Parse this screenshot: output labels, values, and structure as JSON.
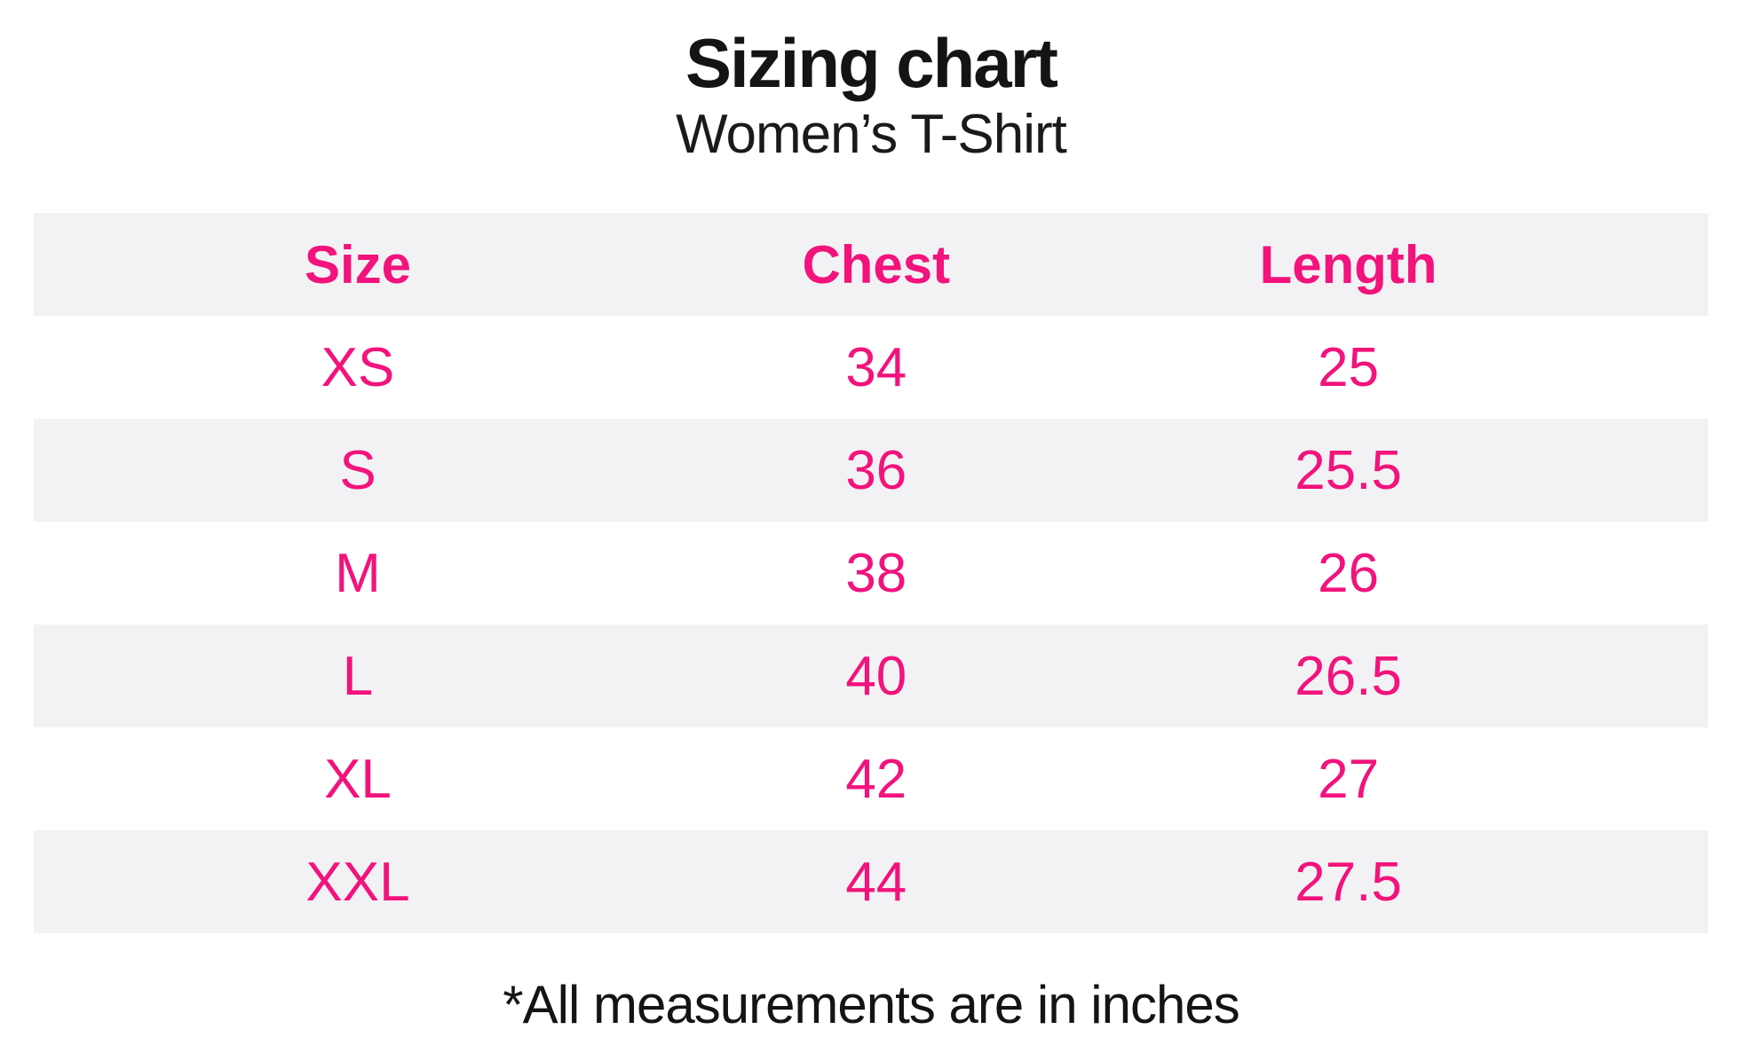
{
  "title": "Sizing chart",
  "subtitle": "Women’s T-Shirt",
  "table": {
    "columns": [
      "Size",
      "Chest",
      "Length"
    ],
    "rows": [
      [
        "XS",
        "34",
        "25"
      ],
      [
        "S",
        "36",
        "25.5"
      ],
      [
        "M",
        "38",
        "26"
      ],
      [
        "L",
        "40",
        "26.5"
      ],
      [
        "XL",
        "42",
        "27"
      ],
      [
        "XXL",
        "44",
        "27.5"
      ]
    ]
  },
  "footnote": "*All measurements are in inches",
  "colors": {
    "accent_pink": "#f2137c",
    "row_alt_gray": "#f2f2f4",
    "text_black": "#141414",
    "background": "#ffffff"
  },
  "chart_data": {
    "type": "table",
    "title": "Sizing chart",
    "subtitle": "Women’s T-Shirt",
    "columns": [
      "Size",
      "Chest",
      "Length"
    ],
    "rows": [
      {
        "size": "XS",
        "chest": 34,
        "length": 25
      },
      {
        "size": "S",
        "chest": 36,
        "length": 25.5
      },
      {
        "size": "M",
        "chest": 38,
        "length": 26
      },
      {
        "size": "L",
        "chest": 40,
        "length": 26.5
      },
      {
        "size": "XL",
        "chest": 42,
        "length": 27
      },
      {
        "size": "XXL",
        "chest": 44,
        "length": 27.5
      }
    ],
    "units": "inches",
    "note": "*All measurements are in inches"
  }
}
